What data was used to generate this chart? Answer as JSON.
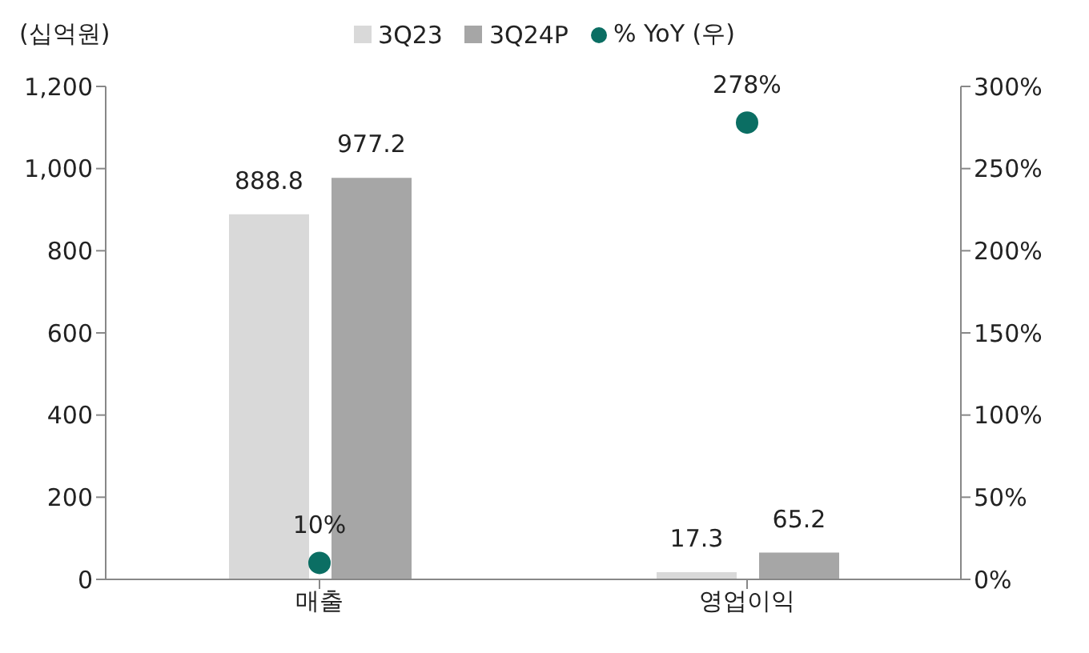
{
  "chart_data": {
    "type": "bar",
    "ylabel": "(십억원)",
    "categories": [
      "매출",
      "영업이익"
    ],
    "series": [
      {
        "name": "3Q23",
        "color": "#d9d9d9",
        "values": [
          888.8,
          17.3
        ],
        "value_labels": [
          "888.8",
          "17.3"
        ]
      },
      {
        "name": "3Q24P",
        "color": "#a6a6a6",
        "values": [
          977.2,
          65.2
        ],
        "value_labels": [
          "977.2",
          "65.2"
        ]
      },
      {
        "name": "% YoY (우)",
        "type": "scatter",
        "axis": "y2",
        "color": "#0b6e63",
        "values": [
          10,
          278
        ],
        "value_labels": [
          "10%",
          "278%"
        ]
      }
    ],
    "ylim": [
      0,
      1200
    ],
    "yticks": [
      0,
      200,
      400,
      600,
      800,
      {
        "value": 1000,
        "label": "1,000"
      },
      {
        "value": 1200,
        "label": "1,200"
      }
    ],
    "y2lim": [
      0,
      300
    ],
    "y2ticks": [
      {
        "value": 0,
        "label": "0%"
      },
      {
        "value": 50,
        "label": "50%"
      },
      {
        "value": 100,
        "label": "100%"
      },
      {
        "value": 150,
        "label": "150%"
      },
      {
        "value": 200,
        "label": "200%"
      },
      {
        "value": 250,
        "label": "250%"
      },
      {
        "value": 300,
        "label": "300%"
      }
    ],
    "legend": "top",
    "marker": "circle"
  }
}
